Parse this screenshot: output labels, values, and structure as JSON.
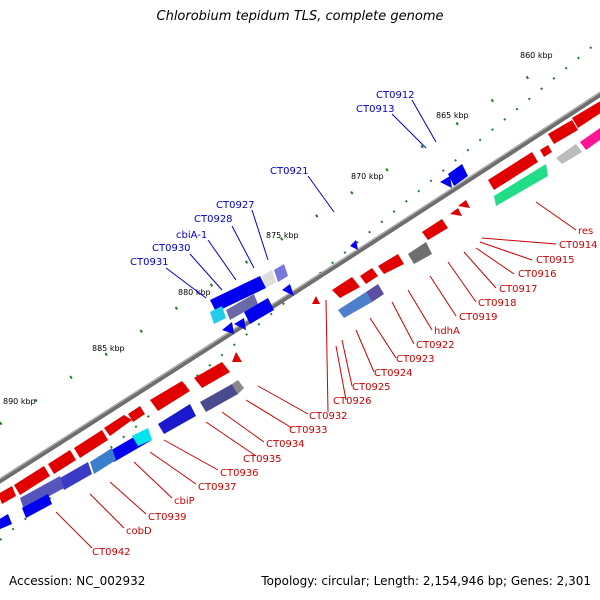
{
  "title": "Chlorobium tepidum TLS, complete genome",
  "footer": {
    "accession": "Accession: NC_002932",
    "summary": "Topology: circular; Length: 2,154,946 bp; Genes: 2,301"
  },
  "colors": {
    "backbone": "#777777",
    "forward": "#ee0000",
    "reverse": "#0000ee",
    "label_forward": "#cc0000",
    "label_reverse": "#0000cc",
    "tick": "#006600"
  },
  "scale": {
    "unit": "kbp",
    "marks": [
      "860 kbp",
      "865 kbp",
      "870 kbp",
      "875 kbp",
      "880 kbp",
      "885 kbp",
      "890 kbp"
    ]
  },
  "forward_labels": [
    "res",
    "CT0914",
    "CT0915",
    "CT0916",
    "CT0917",
    "CT0918",
    "CT0919",
    "hdhA",
    "CT0922",
    "CT0923",
    "CT0924",
    "CT0925",
    "CT0926",
    "CT0932",
    "CT0933",
    "CT0934",
    "CT0935",
    "CT0936",
    "CT0937",
    "cbiP",
    "CT0939",
    "cobD",
    "CT0942"
  ],
  "reverse_labels": [
    "CT0912",
    "CT0913",
    "CT0921",
    "CT0927",
    "CT0928",
    "cbiA-1",
    "CT0930",
    "CT0931"
  ]
}
